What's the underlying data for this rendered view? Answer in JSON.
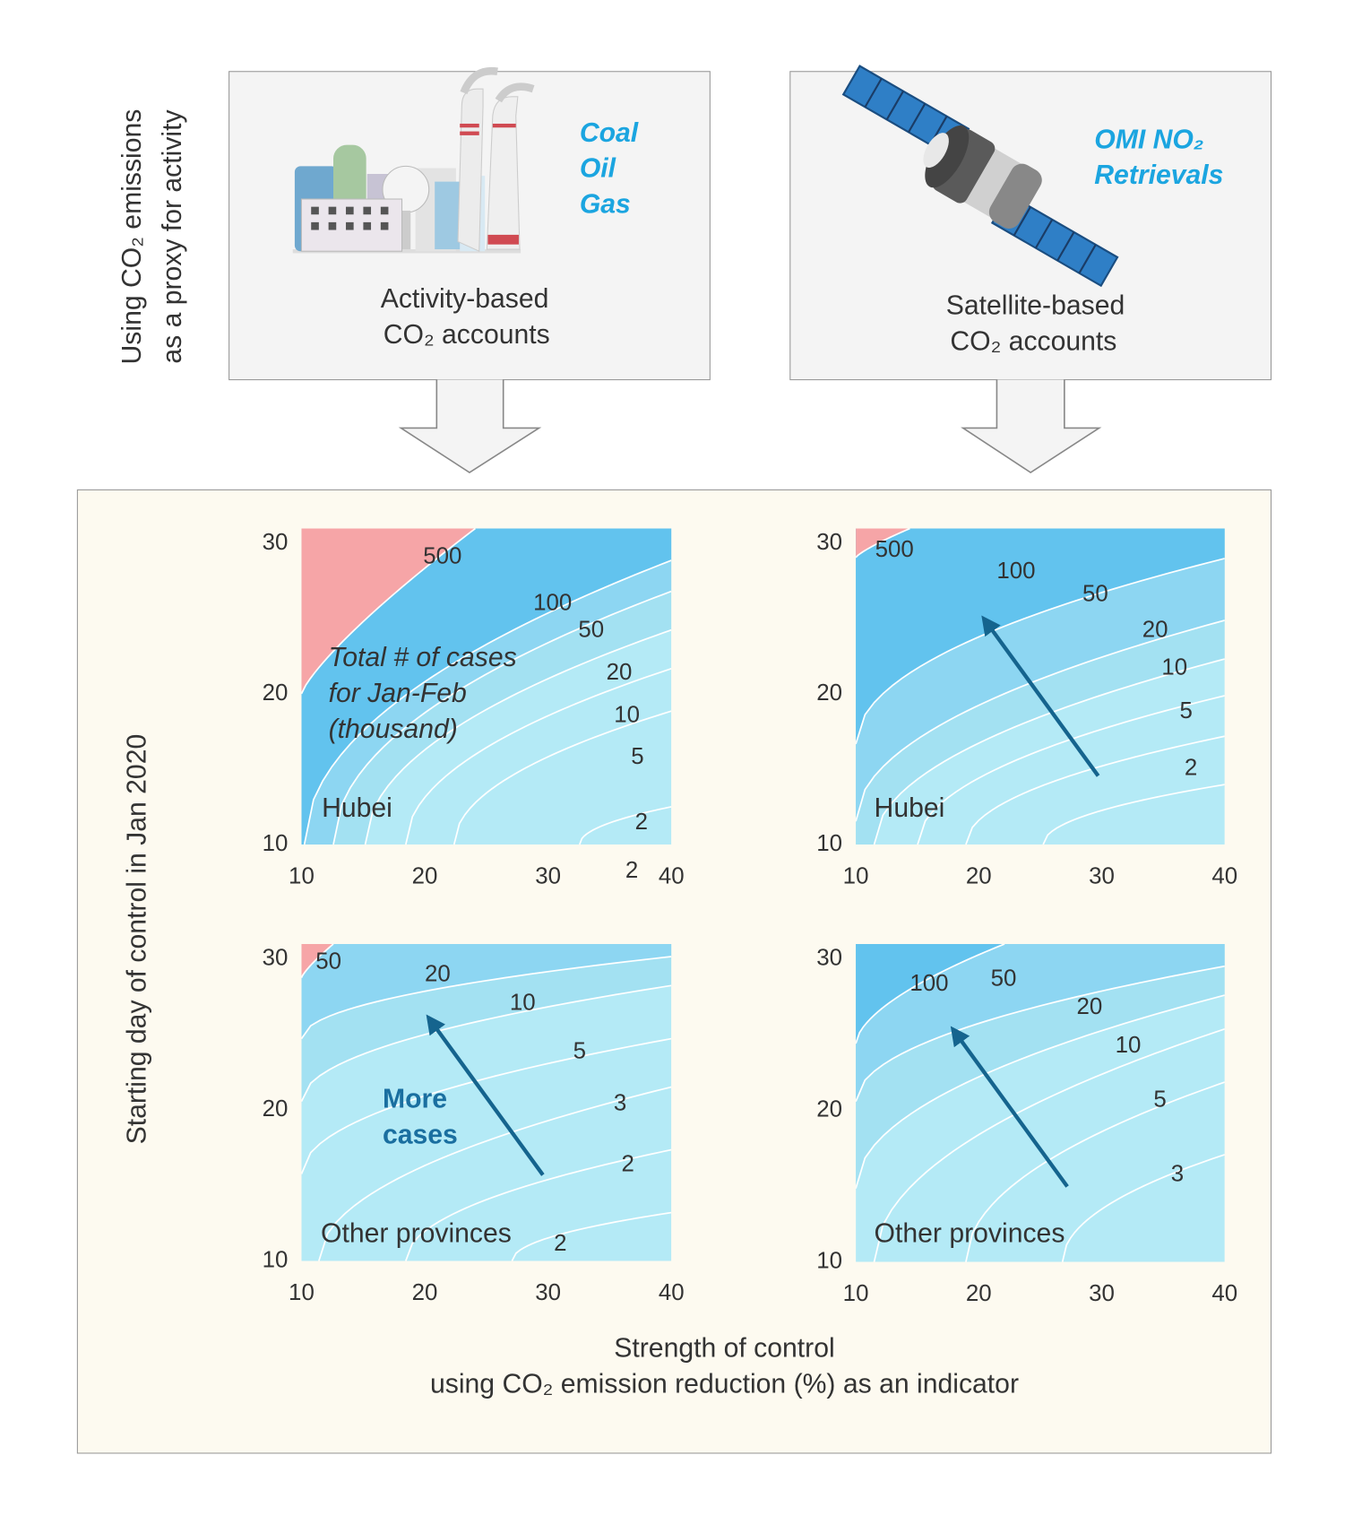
{
  "side_label": [
    "Using CO₂ emissions",
    "as a proxy for activity"
  ],
  "sources": [
    {
      "tags": [
        "Coal",
        "Oil",
        "Gas"
      ],
      "caption": [
        "Activity-based",
        "CO₂ accounts"
      ]
    },
    {
      "tags": [
        "OMI NO₂",
        "Retrievals"
      ],
      "caption": [
        "Satellite-based",
        "CO₂ accounts"
      ]
    }
  ],
  "figure": {
    "ylabel": "Starting day of control in Jan 2020",
    "xlabel": [
      "Strength of control",
      "using CO₂ emission reduction (%) as an indicator"
    ]
  },
  "chart_data": [
    {
      "type": "contour",
      "region": "Hubei",
      "annotation": [
        "Total # of cases",
        "for Jan-Feb",
        "(thousand)"
      ],
      "contour_labels": [
        500,
        100,
        50,
        20,
        10,
        5,
        2,
        2
      ],
      "xlim": [
        10,
        40
      ],
      "xticks": [
        10,
        20,
        30,
        40
      ],
      "ylim": [
        10,
        31
      ],
      "yticks": [
        10,
        20,
        30
      ]
    },
    {
      "type": "contour",
      "region": "Hubei",
      "contour_labels": [
        500,
        100,
        50,
        20,
        10,
        5,
        2
      ],
      "xlim": [
        10,
        40
      ],
      "xticks": [
        10,
        20,
        30,
        40
      ],
      "ylim": [
        10,
        31
      ],
      "yticks": [
        10,
        20,
        30
      ]
    },
    {
      "type": "contour",
      "region": "Other provinces",
      "annotation": [
        "More",
        "cases"
      ],
      "contour_labels": [
        50,
        20,
        10,
        5,
        3,
        2,
        2
      ],
      "xlim": [
        10,
        40
      ],
      "xticks": [
        10,
        20,
        30,
        40
      ],
      "ylim": [
        10,
        31
      ],
      "yticks": [
        10,
        20,
        30
      ]
    },
    {
      "type": "contour",
      "region": "Other provinces",
      "contour_labels": [
        100,
        50,
        20,
        10,
        5,
        3
      ],
      "xlim": [
        10,
        40
      ],
      "xticks": [
        10,
        20,
        30,
        40
      ],
      "ylim": [
        10,
        31
      ],
      "yticks": [
        10,
        20,
        30
      ]
    }
  ]
}
